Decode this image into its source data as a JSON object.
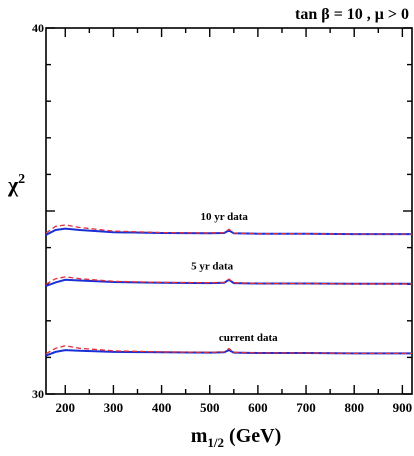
{
  "chart_data": {
    "type": "line",
    "title": "tan β = 10 ,  μ > 0",
    "xlabel": "m",
    "xlabel_sub": "1/2",
    "xlabel_unit": " (GeV)",
    "ylabel": "χ",
    "ylabel_sup": "2",
    "xlim": [
      160,
      920
    ],
    "ylim": [
      30,
      40
    ],
    "xticks": [
      200,
      300,
      400,
      500,
      600,
      700,
      800,
      900
    ],
    "yticks_labeled": [
      30,
      40
    ],
    "grid": false,
    "series": [
      {
        "group": "current data",
        "style": "solid-blue",
        "x": [
          160,
          180,
          200,
          230,
          300,
          400,
          500,
          530,
          540,
          550,
          600,
          700,
          800,
          920
        ],
        "y": [
          31.05,
          31.15,
          31.2,
          31.18,
          31.15,
          31.14,
          31.13,
          31.14,
          31.2,
          31.13,
          31.12,
          31.12,
          31.11,
          31.11
        ]
      },
      {
        "group": "current data",
        "style": "dashed-red",
        "x": [
          160,
          180,
          200,
          230,
          300,
          400,
          500,
          530,
          540,
          550,
          600,
          700,
          800,
          920
        ],
        "y": [
          31.1,
          31.25,
          31.32,
          31.25,
          31.18,
          31.15,
          31.14,
          31.15,
          31.24,
          31.14,
          31.12,
          31.12,
          31.11,
          31.11
        ]
      },
      {
        "group": "5 yr data",
        "style": "solid-blue",
        "x": [
          160,
          180,
          200,
          230,
          300,
          400,
          500,
          530,
          540,
          550,
          600,
          700,
          800,
          920
        ],
        "y": [
          32.95,
          33.05,
          33.12,
          33.1,
          33.06,
          33.04,
          33.03,
          33.04,
          33.12,
          33.03,
          33.02,
          33.02,
          33.01,
          33.01
        ]
      },
      {
        "group": "5 yr data",
        "style": "dashed-red",
        "x": [
          160,
          180,
          200,
          230,
          300,
          400,
          500,
          530,
          540,
          550,
          600,
          700,
          800,
          920
        ],
        "y": [
          33.0,
          33.15,
          33.2,
          33.15,
          33.08,
          33.05,
          33.04,
          33.05,
          33.14,
          33.04,
          33.02,
          33.02,
          33.01,
          33.01
        ]
      },
      {
        "group": "10 yr data",
        "style": "solid-blue",
        "x": [
          160,
          180,
          200,
          230,
          300,
          400,
          500,
          530,
          540,
          550,
          600,
          700,
          800,
          920
        ],
        "y": [
          34.35,
          34.48,
          34.52,
          34.48,
          34.42,
          34.4,
          34.39,
          34.4,
          34.47,
          34.39,
          34.38,
          34.38,
          34.37,
          34.37
        ]
      },
      {
        "group": "10 yr data",
        "style": "dashed-red",
        "x": [
          160,
          180,
          200,
          230,
          300,
          400,
          500,
          530,
          540,
          550,
          600,
          700,
          800,
          920
        ],
        "y": [
          34.4,
          34.58,
          34.62,
          34.55,
          34.45,
          34.41,
          34.4,
          34.41,
          34.5,
          34.4,
          34.38,
          34.38,
          34.37,
          34.37
        ]
      }
    ],
    "annotations": [
      {
        "text": "10 yr data",
        "x": 530,
        "y": 34.75
      },
      {
        "text": "5 yr data",
        "x": 505,
        "y": 33.4
      },
      {
        "text": "current data",
        "x": 580,
        "y": 31.45
      }
    ],
    "colors": {
      "solid": "#1a2fd6",
      "dashed": "#e0303a",
      "axis": "#000000"
    }
  }
}
